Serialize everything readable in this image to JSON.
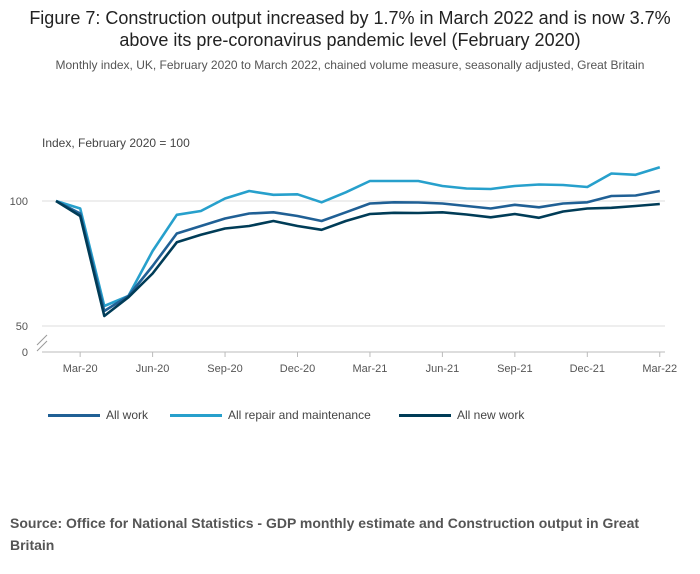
{
  "chart_data": {
    "type": "line",
    "title": "Figure 7: Construction output increased by 1.7% in March 2022 and is now 3.7% above its pre-coronavirus pandemic level (February 2020)",
    "subtitle": "Monthly index, UK, February 2020 to March 2022, chained volume measure, seasonally adjusted, Great Britain",
    "ylabel": "Index, February 2020 = 100",
    "ylim": [
      50,
      120
    ],
    "y_ticks": [
      50,
      100
    ],
    "y_axis_break_label": "0",
    "grid": true,
    "categories": [
      "Feb-20",
      "Mar-20",
      "Apr-20",
      "May-20",
      "Jun-20",
      "Jul-20",
      "Aug-20",
      "Sep-20",
      "Oct-20",
      "Nov-20",
      "Dec-20",
      "Jan-21",
      "Feb-21",
      "Mar-21",
      "Apr-21",
      "May-21",
      "Jun-21",
      "Jul-21",
      "Aug-21",
      "Sep-21",
      "Oct-21",
      "Nov-21",
      "Dec-21",
      "Jan-22",
      "Feb-22",
      "Mar-22"
    ],
    "x_tick_labels": [
      "Mar-20",
      "Jun-20",
      "Sep-20",
      "Dec-20",
      "Mar-21",
      "Jun-21",
      "Sep-21",
      "Dec-21",
      "Mar-22"
    ],
    "series": [
      {
        "name": "All work",
        "color": "#206095",
        "values": [
          100,
          95,
          56,
          62,
          74,
          87,
          90,
          93,
          95,
          95.5,
          94,
          92,
          95.5,
          99,
          99.5,
          99.4,
          99,
          98,
          97,
          98.5,
          97.5,
          99,
          99.5,
          102,
          102.2,
          104
        ]
      },
      {
        "name": "All repair and maintenance",
        "color": "#27a0cc",
        "values": [
          100,
          97,
          58,
          62,
          80,
          94.5,
          96,
          101,
          104,
          102.5,
          102.7,
          99.5,
          103.5,
          108,
          108,
          108,
          106,
          105,
          104.8,
          106,
          106.6,
          106.4,
          105.6,
          111,
          110.5,
          113.5
        ]
      },
      {
        "name": "All new work",
        "color": "#003c57",
        "values": [
          100,
          94,
          54,
          61.5,
          71,
          83.5,
          86.5,
          89,
          90,
          92,
          90,
          88.5,
          92,
          94.8,
          95.3,
          95.2,
          95.5,
          94.6,
          93.5,
          94.8,
          93.3,
          95.8,
          97,
          97.3,
          98,
          98.8
        ]
      }
    ]
  },
  "source": "Source: Office for National Statistics - GDP monthly estimate and Construction output in Great Britain"
}
